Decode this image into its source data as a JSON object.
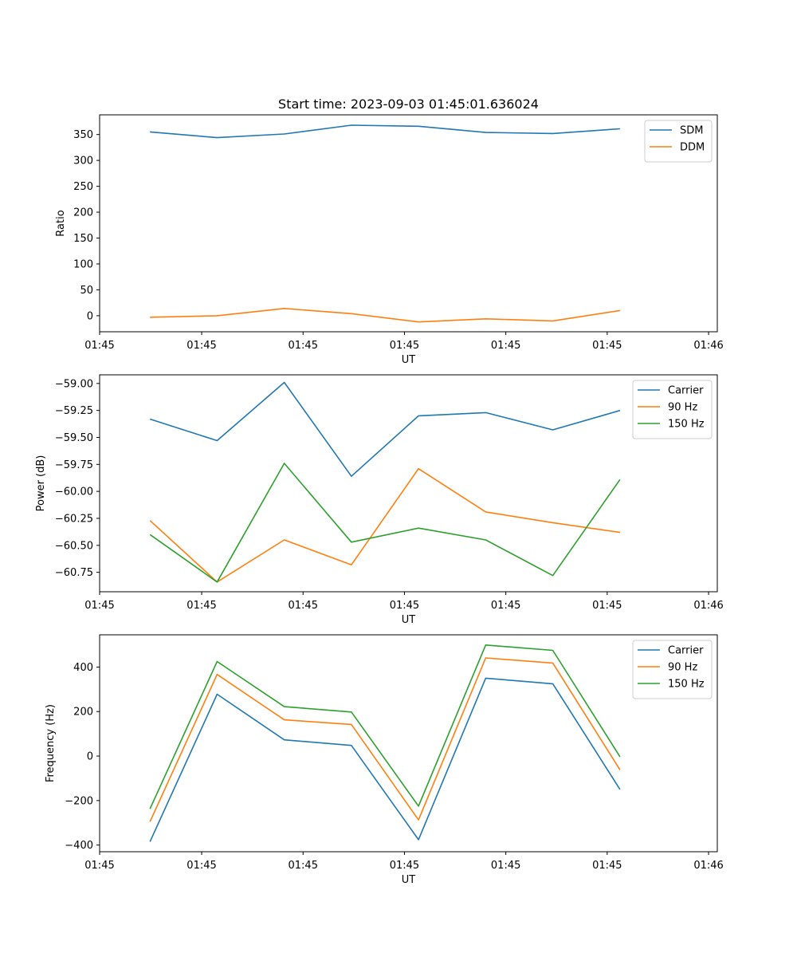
{
  "figure_title": "Start time: 2023-09-03 01:45:01.636024",
  "chart_data": [
    {
      "type": "line",
      "title": "Start time: 2023-09-03 01:45:01.636024",
      "xlabel": "UT",
      "ylabel": "Ratio",
      "x": [
        0,
        1,
        2,
        3,
        4,
        5,
        6,
        7
      ],
      "xlim": [
        -0.75,
        8.45
      ],
      "x_ticks": [
        -0.75,
        0.77,
        2.28,
        3.79,
        5.3,
        6.81,
        8.32
      ],
      "x_tick_labels": [
        "01:45",
        "01:45",
        "01:45",
        "01:45",
        "01:45",
        "01:45",
        "01:46"
      ],
      "ylim": [
        -31,
        388
      ],
      "y_ticks": [
        0,
        50,
        100,
        150,
        200,
        250,
        300,
        350
      ],
      "y_tick_labels": [
        "0",
        "50",
        "100",
        "150",
        "200",
        "250",
        "300",
        "350"
      ],
      "legend_position": "top-right",
      "series": [
        {
          "name": "SDM",
          "color": "#1f77b4",
          "values": [
            355,
            344,
            351,
            368,
            366,
            354,
            352,
            361
          ]
        },
        {
          "name": "DDM",
          "color": "#ff7f0e",
          "values": [
            -3,
            0,
            14,
            4,
            -12,
            -6,
            -10,
            10
          ]
        }
      ]
    },
    {
      "type": "line",
      "title": "",
      "xlabel": "UT",
      "ylabel": "Power (dB)",
      "x": [
        0,
        1,
        2,
        3,
        4,
        5,
        6,
        7
      ],
      "xlim": [
        -0.75,
        8.45
      ],
      "x_ticks": [
        -0.75,
        0.77,
        2.28,
        3.79,
        5.3,
        6.81,
        8.32
      ],
      "x_tick_labels": [
        "01:45",
        "01:45",
        "01:45",
        "01:45",
        "01:45",
        "01:45",
        "01:46"
      ],
      "ylim": [
        -60.93,
        -58.92
      ],
      "y_ticks": [
        -59.0,
        -59.25,
        -59.5,
        -59.75,
        -60.0,
        -60.25,
        -60.5,
        -60.75
      ],
      "y_tick_labels": [
        "−59.00",
        "−59.25",
        "−59.50",
        "−59.75",
        "−60.00",
        "−60.25",
        "−60.50",
        "−60.75"
      ],
      "legend_position": "top-right",
      "series": [
        {
          "name": "Carrier",
          "color": "#1f77b4",
          "values": [
            -59.33,
            -59.53,
            -58.99,
            -59.86,
            -59.3,
            -59.27,
            -59.43,
            -59.25
          ]
        },
        {
          "name": "90 Hz",
          "color": "#ff7f0e",
          "values": [
            -60.27,
            -60.84,
            -60.45,
            -60.68,
            -59.79,
            -60.19,
            -60.29,
            -60.38
          ]
        },
        {
          "name": "150 Hz",
          "color": "#2ca02c",
          "values": [
            -60.4,
            -60.84,
            -59.74,
            -60.47,
            -60.34,
            -60.45,
            -60.78,
            -59.89
          ]
        }
      ]
    },
    {
      "type": "line",
      "title": "",
      "xlabel": "UT",
      "ylabel": "Frequency (Hz)",
      "x": [
        0,
        1,
        2,
        3,
        4,
        5,
        6,
        7
      ],
      "xlim": [
        -0.75,
        8.45
      ],
      "x_ticks": [
        -0.75,
        0.77,
        2.28,
        3.79,
        5.3,
        6.81,
        8.32
      ],
      "x_tick_labels": [
        "01:45",
        "01:45",
        "01:45",
        "01:45",
        "01:45",
        "01:45",
        "01:46"
      ],
      "ylim": [
        -430,
        545
      ],
      "y_ticks": [
        -400,
        -200,
        0,
        200,
        400
      ],
      "y_tick_labels": [
        "−400",
        "−200",
        "0",
        "200",
        "400"
      ],
      "legend_position": "top-right",
      "series": [
        {
          "name": "Carrier",
          "color": "#1f77b4",
          "values": [
            -385,
            278,
            73,
            48,
            -376,
            350,
            325,
            -150
          ]
        },
        {
          "name": "90 Hz",
          "color": "#ff7f0e",
          "values": [
            -295,
            367,
            163,
            142,
            -287,
            441,
            418,
            -62
          ]
        },
        {
          "name": "150 Hz",
          "color": "#2ca02c",
          "values": [
            -237,
            425,
            222,
            198,
            -225,
            499,
            475,
            -3
          ]
        }
      ]
    }
  ]
}
